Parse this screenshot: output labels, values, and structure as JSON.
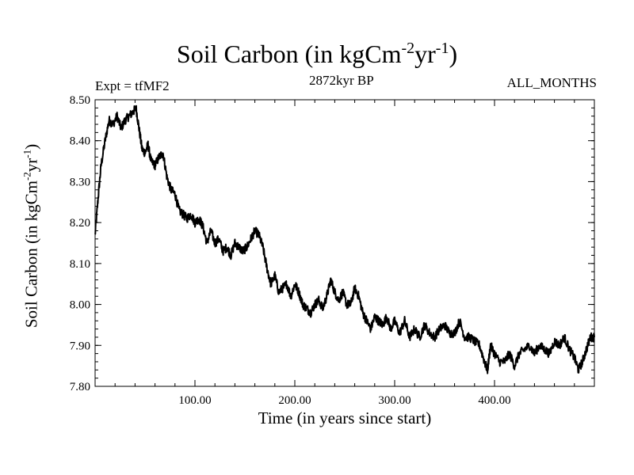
{
  "chart_data": {
    "type": "line",
    "title_main": "Soil Carbon (in kgCm",
    "title_exp1": "-2",
    "title_mid": "yr",
    "title_exp2": "-1",
    "title_end": ")",
    "experiment": "Expt = tfMF2",
    "subtitle": "2872kyr BP",
    "period": "ALL_MONTHS",
    "xlabel": "Time (in years since start)",
    "ylabel_main": "Soil Carbon (in kgCm",
    "ylabel_exp1": "-2",
    "ylabel_mid": "yr",
    "ylabel_exp2": "-1",
    "ylabel_end": ")",
    "xlim": [
      0,
      500
    ],
    "ylim": [
      7.8,
      8.5
    ],
    "xticks": [
      100,
      200,
      300,
      400
    ],
    "xtick_labels": [
      "100.00",
      "200.00",
      "300.00",
      "400.00"
    ],
    "yticks": [
      7.8,
      7.9,
      8.0,
      8.1,
      8.2,
      8.3,
      8.4,
      8.5
    ],
    "ytick_labels": [
      "7.80",
      "7.90",
      "8.00",
      "8.10",
      "8.20",
      "8.30",
      "8.40",
      "8.50"
    ],
    "series": [
      {
        "name": "Soil Carbon",
        "color": "#000000",
        "x": [
          0,
          3,
          6,
          10,
          14,
          18,
          22,
          26,
          30,
          34,
          38,
          41,
          44,
          47,
          50,
          53,
          56,
          60,
          64,
          68,
          72,
          76,
          80,
          84,
          88,
          92,
          96,
          100,
          104,
          108,
          112,
          116,
          120,
          124,
          128,
          132,
          136,
          140,
          144,
          148,
          152,
          156,
          160,
          164,
          168,
          172,
          176,
          180,
          184,
          188,
          192,
          196,
          200,
          204,
          208,
          212,
          216,
          220,
          224,
          228,
          232,
          236,
          240,
          244,
          248,
          252,
          256,
          260,
          264,
          268,
          272,
          276,
          280,
          284,
          288,
          292,
          296,
          300,
          305,
          310,
          315,
          320,
          325,
          330,
          335,
          340,
          345,
          350,
          355,
          360,
          365,
          370,
          375,
          380,
          385,
          390,
          393,
          396,
          400,
          405,
          410,
          415,
          420,
          425,
          430,
          435,
          440,
          445,
          450,
          455,
          460,
          465,
          470,
          475,
          480,
          484,
          488,
          492,
          496,
          500
        ],
        "y": [
          8.17,
          8.26,
          8.34,
          8.4,
          8.45,
          8.44,
          8.46,
          8.43,
          8.45,
          8.46,
          8.47,
          8.48,
          8.43,
          8.38,
          8.37,
          8.39,
          8.35,
          8.34,
          8.36,
          8.37,
          8.31,
          8.28,
          8.27,
          8.23,
          8.22,
          8.21,
          8.22,
          8.2,
          8.21,
          8.19,
          8.15,
          8.18,
          8.15,
          8.16,
          8.13,
          8.14,
          8.12,
          8.15,
          8.14,
          8.13,
          8.14,
          8.16,
          8.18,
          8.17,
          8.14,
          8.09,
          8.05,
          8.07,
          8.03,
          8.04,
          8.05,
          8.02,
          8.05,
          8.03,
          8.0,
          7.99,
          7.98,
          8.0,
          8.01,
          7.99,
          8.02,
          8.06,
          8.03,
          8.01,
          8.03,
          8.0,
          8.0,
          8.04,
          8.02,
          7.98,
          7.96,
          7.94,
          7.97,
          7.96,
          7.95,
          7.97,
          7.94,
          7.96,
          7.93,
          7.96,
          7.92,
          7.94,
          7.92,
          7.95,
          7.93,
          7.92,
          7.94,
          7.95,
          7.93,
          7.93,
          7.96,
          7.92,
          7.92,
          7.91,
          7.9,
          7.86,
          7.84,
          7.9,
          7.88,
          7.86,
          7.86,
          7.88,
          7.85,
          7.88,
          7.89,
          7.9,
          7.88,
          7.9,
          7.89,
          7.88,
          7.91,
          7.9,
          7.92,
          7.89,
          7.87,
          7.84,
          7.86,
          7.89,
          7.92,
          7.92
        ]
      }
    ]
  }
}
